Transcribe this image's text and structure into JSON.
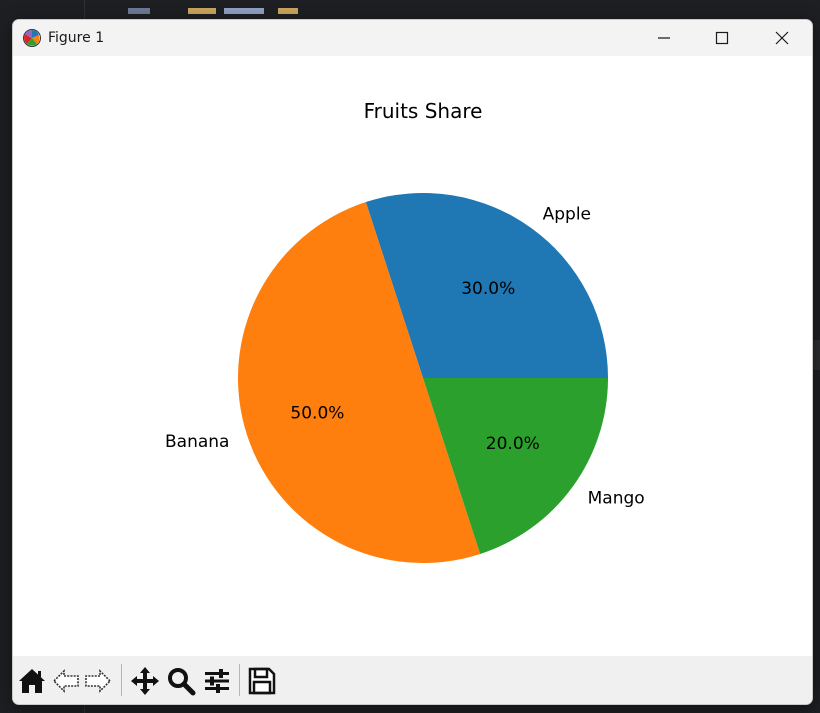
{
  "window": {
    "title": "Figure 1"
  },
  "chart_data": {
    "type": "pie",
    "title": "Fruits Share",
    "labels": [
      "Apple",
      "Banana",
      "Mango"
    ],
    "values": [
      30,
      50,
      20
    ],
    "percent_labels": [
      "30.0%",
      "50.0%",
      "20.0%"
    ],
    "colors": [
      "#1f77b4",
      "#ff7f0e",
      "#2ca02c"
    ],
    "start_angle": 0,
    "direction": "counterclockwise"
  },
  "toolbar": {
    "icons": [
      "home-icon",
      "back-arrow-icon",
      "forward-arrow-icon",
      "pan-icon",
      "zoom-icon",
      "configure-subplots-icon",
      "save-icon"
    ]
  }
}
